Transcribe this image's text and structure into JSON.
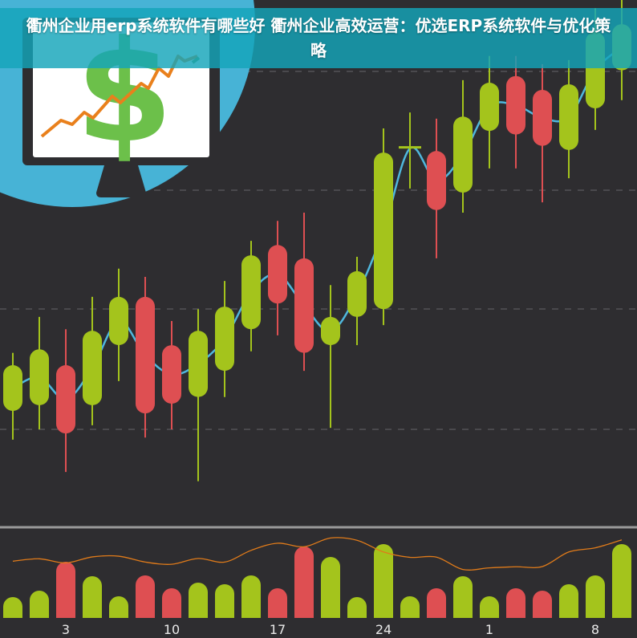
{
  "title": "衢州企业用erp系统软件有哪些好 衢州企业高效运营：优选ERP系统软件与优化策略",
  "colors": {
    "background": "#2e2d30",
    "up": "#a4c41c",
    "down": "#de4f52",
    "ma_line": "#4fb7dd",
    "volume_line": "#e07b1a",
    "circle": "#47b3d6",
    "banner": "#14a5b9",
    "dollar": "#6cc04a",
    "trend_line": "#e9801c"
  },
  "illustration": {
    "icon": "monitor-dollar-growth-icon"
  },
  "chart_data": {
    "type": "candlestick",
    "title": "",
    "ylim": [
      0,
      100
    ],
    "grid": "dashed horizontal",
    "candles": [
      {
        "o": 20,
        "c": 28.9,
        "h": 31.3,
        "l": 14.4
      },
      {
        "o": 21.1,
        "c": 32,
        "h": 38.3,
        "l": 16.4
      },
      {
        "o": 28.9,
        "c": 15.6,
        "h": 35.9,
        "l": 8.1
      },
      {
        "o": 21.1,
        "c": 35.6,
        "h": 42.2,
        "l": 17.2
      },
      {
        "o": 32.8,
        "c": 42.2,
        "h": 47.7,
        "l": 25.8
      },
      {
        "o": 42.2,
        "c": 19.5,
        "h": 46.1,
        "l": 14.8
      },
      {
        "o": 32.8,
        "c": 21.4,
        "h": 37.5,
        "l": 16.4
      },
      {
        "o": 22.7,
        "c": 35.6,
        "h": 39.8,
        "l": 6.3
      },
      {
        "o": 27.8,
        "c": 40.3,
        "h": 45.3,
        "l": 22.7
      },
      {
        "o": 35.9,
        "c": 50.3,
        "h": 53.1,
        "l": 31.6
      },
      {
        "o": 52.3,
        "c": 40.9,
        "h": 57,
        "l": 34.7
      },
      {
        "o": 49.7,
        "c": 31.3,
        "h": 58.6,
        "l": 27.8
      },
      {
        "o": 32.8,
        "c": 38.3,
        "h": 44.5,
        "l": 16.7
      },
      {
        "o": 38.3,
        "c": 47.2,
        "h": 50,
        "l": 32.8
      },
      {
        "o": 39.8,
        "c": 70.3,
        "h": 75,
        "l": 36.7
      },
      {
        "o": 70.9,
        "c": 71.3,
        "h": 78.1,
        "l": 63.3
      },
      {
        "o": 70.6,
        "c": 59.1,
        "h": 76.9,
        "l": 49.7
      },
      {
        "o": 62.5,
        "c": 77.3,
        "h": 84.4,
        "l": 58.6
      },
      {
        "o": 74.5,
        "c": 83.9,
        "h": 89.1,
        "l": 67.2
      },
      {
        "o": 85.2,
        "c": 73.8,
        "h": 89.1,
        "l": 67.2
      },
      {
        "o": 82.5,
        "c": 71.6,
        "h": 87.5,
        "l": 60.6
      },
      {
        "o": 70.8,
        "c": 83.6,
        "h": 88.3,
        "l": 65.3
      },
      {
        "o": 78.9,
        "c": 93.8,
        "h": 98.4,
        "l": 74.7
      },
      {
        "o": 86.3,
        "c": 95.3,
        "h": 100,
        "l": 80.5
      }
    ],
    "volume": [
      26,
      34,
      70,
      52,
      27,
      53,
      37,
      44,
      42,
      53,
      37,
      89,
      76,
      26,
      92,
      27,
      37,
      52,
      27,
      37,
      34,
      42,
      53,
      92
    ],
    "volume_ylim": [
      0,
      110
    ],
    "x_tick_labels": [
      {
        "index": 2,
        "label": "3"
      },
      {
        "index": 6,
        "label": "10"
      },
      {
        "index": 10,
        "label": "17"
      },
      {
        "index": 14,
        "label": "24"
      },
      {
        "index": 18,
        "label": "1"
      },
      {
        "index": 22,
        "label": "8"
      }
    ]
  }
}
